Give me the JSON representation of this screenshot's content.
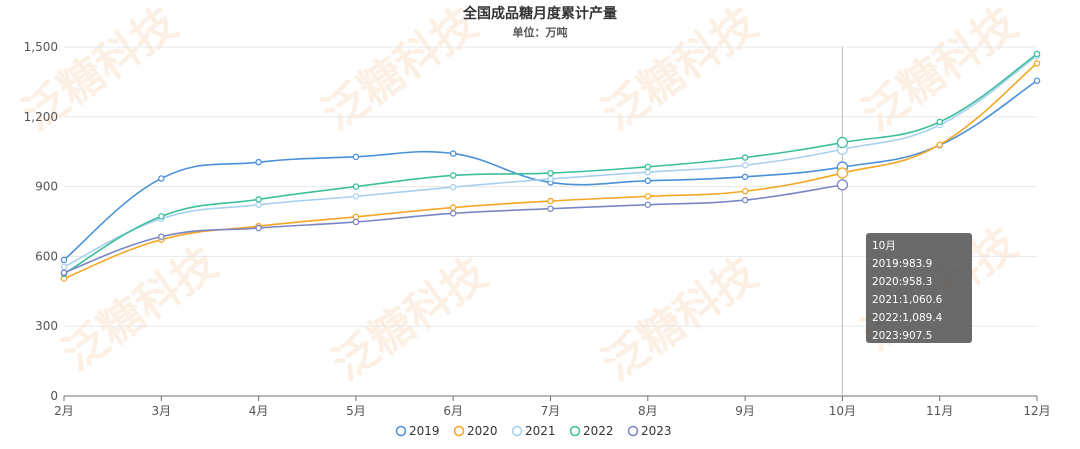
{
  "chart_data": {
    "type": "line",
    "title": "全国成品糖月度累计产量",
    "subtitle": "单位：万吨",
    "categories": [
      "2月",
      "3月",
      "4月",
      "5月",
      "6月",
      "7月",
      "8月",
      "9月",
      "10月",
      "11月",
      "12月"
    ],
    "ylim": [
      0,
      1500
    ],
    "yticks": [
      "0",
      "300",
      "600",
      "900",
      "1,200",
      "1,500"
    ],
    "ytick_values": [
      0,
      300,
      600,
      900,
      1200,
      1500
    ],
    "grid": true,
    "legend_position": "bottom-center",
    "series": [
      {
        "name": "2019",
        "color": "#4a90d9",
        "values": [
          585,
          935,
          1005,
          1028,
          1042,
          918,
          925,
          942,
          983.9,
          1078,
          1355
        ]
      },
      {
        "name": "2020",
        "color": "#f5a623",
        "values": [
          505,
          672,
          730,
          770,
          810,
          838,
          858,
          880,
          958.3,
          1080,
          1430
        ]
      },
      {
        "name": "2021",
        "color": "#a8d1f0",
        "values": [
          555,
          762,
          822,
          858,
          898,
          933,
          962,
          992,
          1060.6,
          1165,
          1462
        ]
      },
      {
        "name": "2022",
        "color": "#3cbf9b",
        "values": [
          525,
          772,
          845,
          900,
          948,
          958,
          985,
          1025,
          1089.4,
          1178,
          1470
        ]
      },
      {
        "name": "2023",
        "color": "#7a86c4",
        "values": [
          530,
          685,
          722,
          748,
          785,
          805,
          822,
          842,
          907.5,
          null,
          null
        ]
      }
    ],
    "tooltip": {
      "category_index": 8,
      "header": "10月",
      "lines": [
        "2019:983.9",
        "2020:958.3",
        "2021:1,060.6",
        "2022:1,089.4",
        "2023:907.5"
      ]
    }
  },
  "watermark": "泛糖科技"
}
